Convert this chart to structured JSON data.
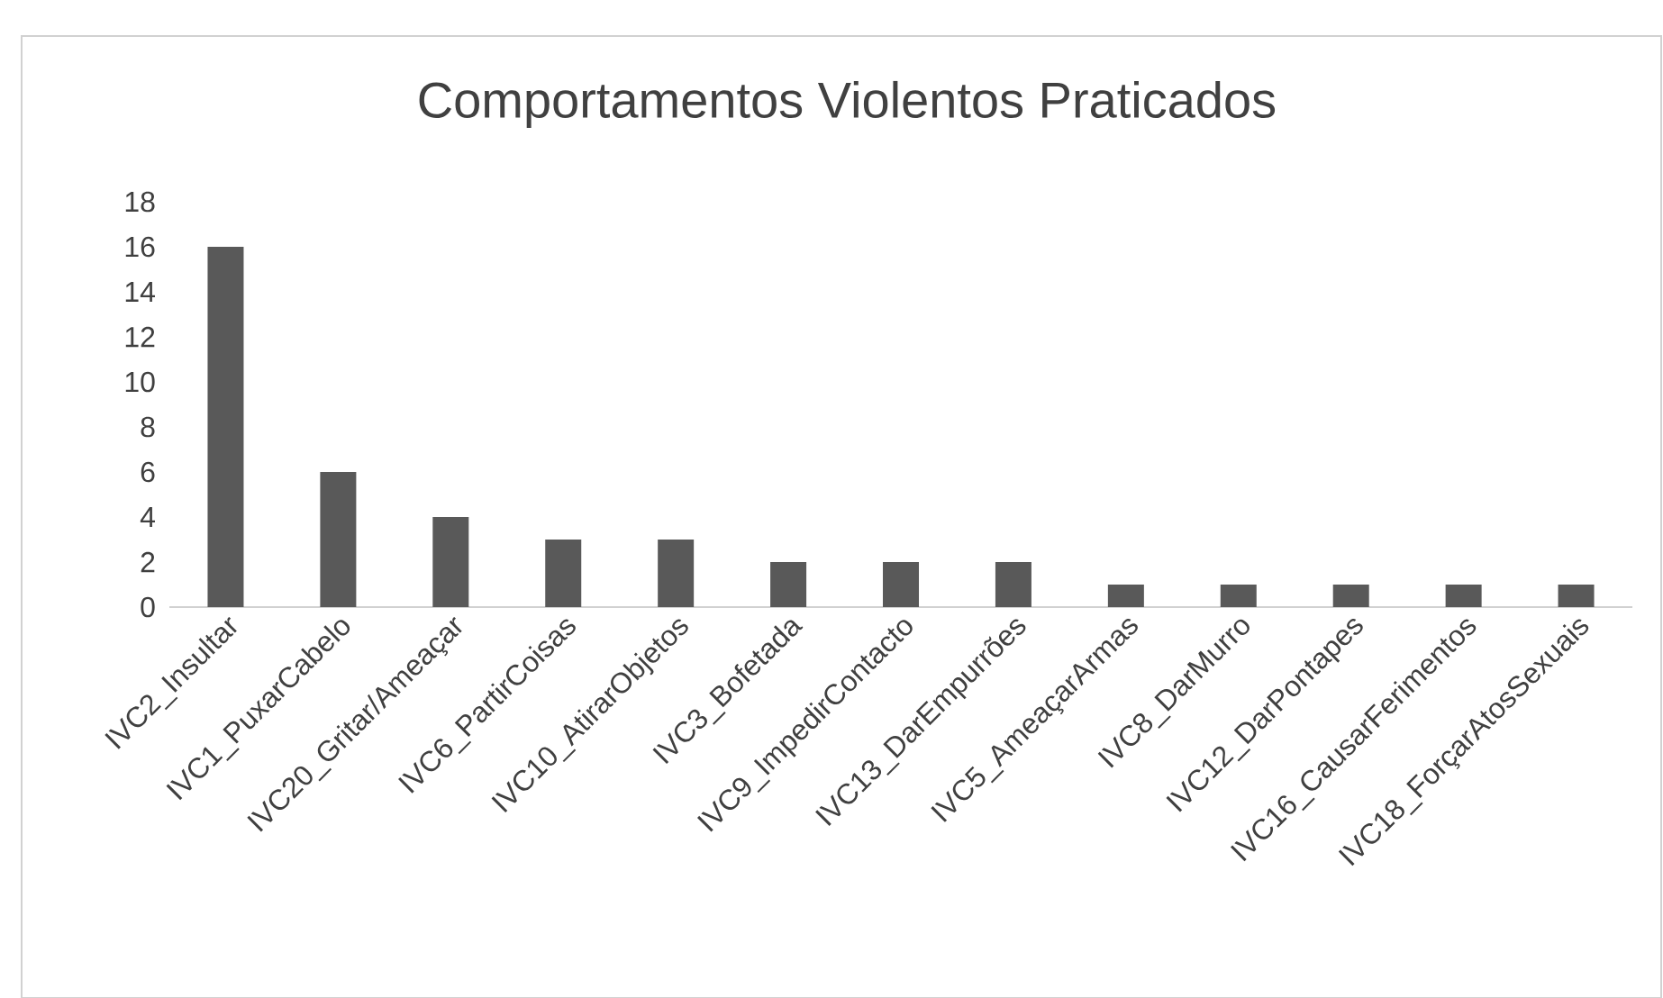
{
  "chart_data": {
    "type": "bar",
    "title": "Comportamentos Violentos Praticados",
    "categories": [
      "IVC2_Insultar",
      "IVC1_PuxarCabelo",
      "IVC20_Gritar/Ameaçar",
      "IVC6_PartirCoisas",
      "IVC10_AtirarObjetos",
      "IVC3_Bofetada",
      "IVC9_ImpedirContacto",
      "IVC13_DarEmpurrões",
      "IVC5_AmeaçarArmas",
      "IVC8_DarMurro",
      "IVC12_DarPontapes",
      "IVC16_CausarFerimentos",
      "IVC18_ForçarAtosSexuais"
    ],
    "values": [
      16,
      6,
      4,
      3,
      3,
      2,
      2,
      2,
      1,
      1,
      1,
      1,
      1
    ],
    "color": "#595959",
    "ylim": [
      0,
      18
    ],
    "yticks": [
      0,
      2,
      4,
      6,
      8,
      10,
      12,
      14,
      16,
      18
    ]
  }
}
